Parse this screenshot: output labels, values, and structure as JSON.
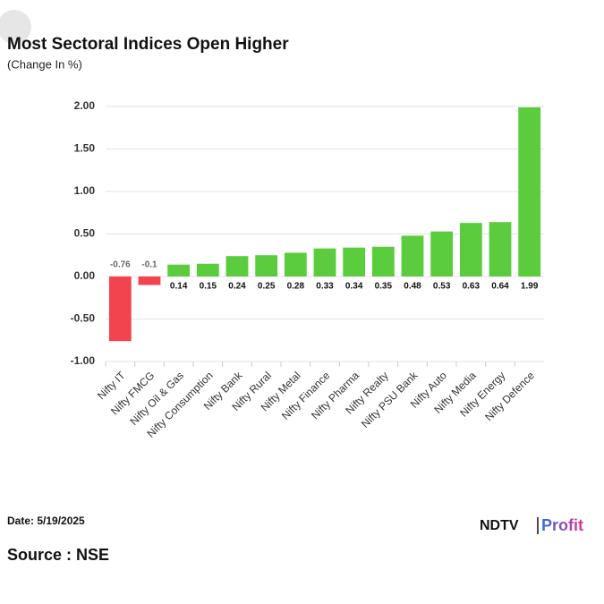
{
  "chart_data": {
    "type": "bar",
    "title": "Most Sectoral Indices Open Higher",
    "subtitle": "(Change In %)",
    "categories": [
      "Nifty IT",
      "Nifty FMCG",
      "Nifty Oil & Gas",
      "Nifty Consumption",
      "Nifty Bank",
      "Nifty Rural",
      "Nifty Metal",
      "Nifty Finance",
      "Nifty Pharma",
      "Nifty Realty",
      "Nifty PSU Bank",
      "Nifty Auto",
      "Nifty Media",
      "Nifty Energy",
      "Nifty Defence"
    ],
    "values": [
      -0.76,
      -0.1,
      0.14,
      0.15,
      0.24,
      0.25,
      0.28,
      0.33,
      0.34,
      0.35,
      0.48,
      0.53,
      0.63,
      0.64,
      1.99
    ],
    "colors": [
      "#f2444e",
      "#f2444e",
      "#5ccc3f",
      "#5ccc3f",
      "#5ccc3f",
      "#5ccc3f",
      "#5ccc3f",
      "#5ccc3f",
      "#5ccc3f",
      "#5ccc3f",
      "#5ccc3f",
      "#5ccc3f",
      "#5ccc3f",
      "#5ccc3f",
      "#5ccc3f"
    ],
    "ylim": [
      -1,
      2
    ],
    "yticks": [
      {
        "value": -1,
        "label": "-1.00"
      },
      {
        "value": -0.5,
        "label": "-0.50"
      },
      {
        "value": 0,
        "label": "0.00"
      },
      {
        "value": 0.5,
        "label": "0.50"
      },
      {
        "value": 1,
        "label": "1.00"
      },
      {
        "value": 1.5,
        "label": "1.50"
      },
      {
        "value": 2,
        "label": "2.00"
      }
    ],
    "grid": true
  },
  "footer": {
    "date": "Date: 5/19/2025",
    "source": "Source : NSE",
    "logo_left": "NDTV",
    "logo_right": "Profit"
  }
}
